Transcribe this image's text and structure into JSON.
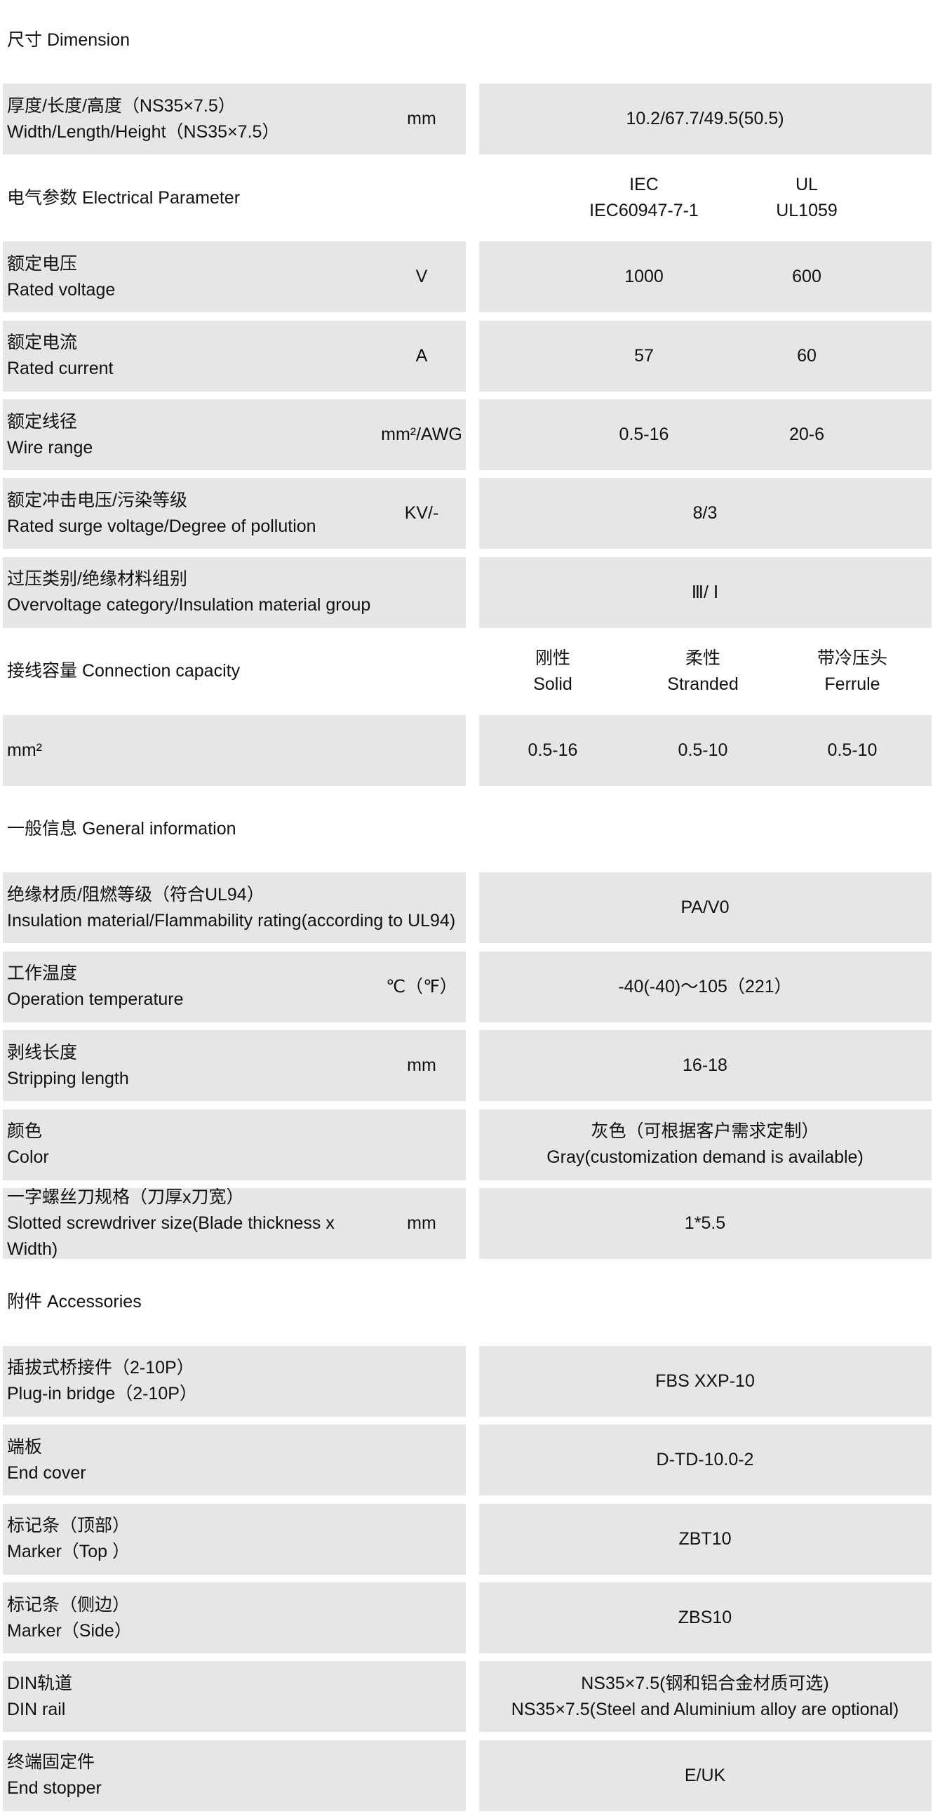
{
  "colors": {
    "header": "#00b0f0",
    "cell": "#e7e6e6"
  },
  "rows": [
    {
      "type": "header",
      "title": "尺寸 Dimension",
      "cols": []
    },
    {
      "type": "body",
      "zh": "厚度/长度/高度（NS35×7.5）",
      "en": "Width/Length/Height（NS35×7.5）",
      "unit": "mm",
      "cols": [
        [
          "10.2/67.7/49.5(50.5)"
        ]
      ]
    },
    {
      "type": "header",
      "title": "电气参数 Electrical Parameter",
      "cols": [
        [
          "IEC",
          "IEC60947-7-1"
        ],
        [
          "UL",
          "UL1059"
        ]
      ]
    },
    {
      "type": "body",
      "zh": "额定电压",
      "en": "Rated voltage",
      "unit": "V",
      "cols": [
        [
          "1000"
        ],
        [
          "600"
        ]
      ]
    },
    {
      "type": "body",
      "zh": "额定电流",
      "en": "Rated current",
      "unit": "A",
      "cols": [
        [
          "57"
        ],
        [
          "60"
        ]
      ]
    },
    {
      "type": "body",
      "zh": "额定线径",
      "en": "Wire range",
      "unit": "mm²/AWG",
      "cols": [
        [
          "0.5-16"
        ],
        [
          "20-6"
        ]
      ]
    },
    {
      "type": "body",
      "zh": "额定冲击电压/污染等级",
      "en": "Rated surge voltage/Degree of pollution",
      "unit": "KV/-",
      "cols": [
        [
          "8/3"
        ]
      ]
    },
    {
      "type": "body",
      "zh": "过压类别/绝缘材料组别",
      "en": "Overvoltage category/Insulation material group",
      "unit": "",
      "cols": [
        [
          "Ⅲ/ Ⅰ"
        ]
      ]
    },
    {
      "type": "header",
      "title": "接线容量 Connection capacity",
      "cols": [
        [
          "刚性",
          "Solid"
        ],
        [
          "柔性",
          "Stranded"
        ],
        [
          "带冷压头",
          "Ferrule"
        ]
      ]
    },
    {
      "type": "body",
      "zh": "mm²",
      "en": "",
      "unit": "",
      "cols": [
        [
          "0.5-16"
        ],
        [
          "0.5-10"
        ],
        [
          "0.5-10"
        ]
      ]
    },
    {
      "type": "header",
      "title": "一般信息 General information",
      "cols": []
    },
    {
      "type": "body",
      "zh": "绝缘材质/阻燃等级（符合UL94）",
      "en": "Insulation material/Flammability rating(according to UL94)",
      "unit": "",
      "cols": [
        [
          "PA/V0"
        ]
      ]
    },
    {
      "type": "body",
      "zh": "工作温度",
      "en": "Operation temperature",
      "unit": "℃（℉）",
      "cols": [
        [
          "-40(-40)～105（221）"
        ]
      ]
    },
    {
      "type": "body",
      "zh": "剥线长度",
      "en": "Stripping length",
      "unit": "mm",
      "cols": [
        [
          "16-18"
        ]
      ]
    },
    {
      "type": "body",
      "zh": "颜色",
      "en": "Color",
      "unit": "",
      "cols": [
        [
          "灰色（可根据客户需求定制）",
          "Gray(customization demand is available)"
        ]
      ]
    },
    {
      "type": "body",
      "zh": "一字螺丝刀规格（刀厚x刀宽）",
      "en": "Slotted screwdriver size(Blade thickness x Width)",
      "unit": "mm",
      "cols": [
        [
          "1*5.5"
        ]
      ]
    },
    {
      "type": "header",
      "title": "附件 Accessories",
      "cols": []
    },
    {
      "type": "body",
      "zh": "插拔式桥接件（2-10P）",
      "en": "Plug-in bridge（2-10P）",
      "unit": "",
      "cols": [
        [
          "FBS XXP-10"
        ]
      ]
    },
    {
      "type": "body",
      "zh": "端板",
      "en": "End cover",
      "unit": "",
      "cols": [
        [
          "D-TD-10.0-2"
        ]
      ]
    },
    {
      "type": "body",
      "zh": "标记条（顶部）",
      "en": "Marker（Top ）",
      "unit": "",
      "cols": [
        [
          "ZBT10"
        ]
      ]
    },
    {
      "type": "body",
      "zh": "标记条（侧边）",
      "en": "Marker（Side）",
      "unit": "",
      "cols": [
        [
          "ZBS10"
        ]
      ]
    },
    {
      "type": "body",
      "zh": "DIN轨道",
      "en": "DIN rail",
      "unit": "",
      "cols": [
        [
          "NS35×7.5(钢和铝合金材质可选)",
          "NS35×7.5(Steel and Aluminium alloy are optional)"
        ]
      ]
    },
    {
      "type": "body",
      "zh": "终端固定件",
      "en": "End stopper",
      "unit": "",
      "cols": [
        [
          "E/UK"
        ]
      ]
    }
  ]
}
